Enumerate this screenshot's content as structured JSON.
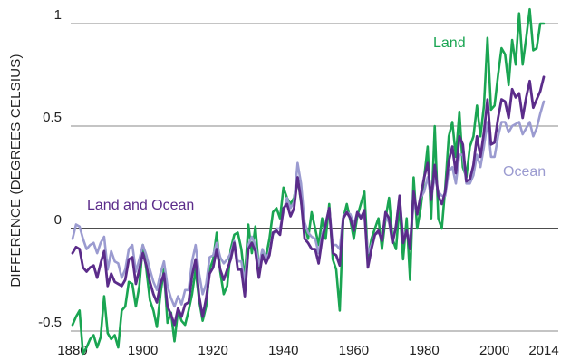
{
  "chart_data": {
    "type": "line",
    "title": "",
    "xlabel": "",
    "ylabel": "DIFFERENCE (DEGREES CELSIUS)",
    "xlim": [
      1880,
      2014
    ],
    "ylim": [
      -0.55,
      1.1
    ],
    "x_ticks": [
      1880,
      1900,
      1920,
      1940,
      1960,
      1980,
      2000,
      2014
    ],
    "x_tick_labels": [
      "1880",
      "1900",
      "1920",
      "1940",
      "1960",
      "1980",
      "2000",
      "2014"
    ],
    "y_ticks": [
      -0.5,
      0,
      0.5,
      1
    ],
    "y_tick_labels": [
      "-0.5",
      "0",
      "0.5",
      "1"
    ],
    "grid": "horizontal",
    "x": [
      1880,
      1881,
      1882,
      1883,
      1884,
      1885,
      1886,
      1887,
      1888,
      1889,
      1890,
      1891,
      1892,
      1893,
      1894,
      1895,
      1896,
      1897,
      1898,
      1899,
      1900,
      1901,
      1902,
      1903,
      1904,
      1905,
      1906,
      1907,
      1908,
      1909,
      1910,
      1911,
      1912,
      1913,
      1914,
      1915,
      1916,
      1917,
      1918,
      1919,
      1920,
      1921,
      1922,
      1923,
      1924,
      1925,
      1926,
      1927,
      1928,
      1929,
      1930,
      1931,
      1932,
      1933,
      1934,
      1935,
      1936,
      1937,
      1938,
      1939,
      1940,
      1941,
      1942,
      1943,
      1944,
      1945,
      1946,
      1947,
      1948,
      1949,
      1950,
      1951,
      1952,
      1953,
      1954,
      1955,
      1956,
      1957,
      1958,
      1959,
      1960,
      1961,
      1962,
      1963,
      1964,
      1965,
      1966,
      1967,
      1968,
      1969,
      1970,
      1971,
      1972,
      1973,
      1974,
      1975,
      1976,
      1977,
      1978,
      1979,
      1980,
      1981,
      1982,
      1983,
      1984,
      1985,
      1986,
      1987,
      1988,
      1989,
      1990,
      1991,
      1992,
      1993,
      1994,
      1995,
      1996,
      1997,
      1998,
      1999,
      2000,
      2001,
      2002,
      2003,
      2004,
      2005,
      2006,
      2007,
      2008,
      2009,
      2010,
      2011,
      2012,
      2013,
      2014
    ],
    "series": [
      {
        "name": "Land",
        "color": "#1aa552",
        "values": [
          -0.47,
          -0.43,
          -0.4,
          -0.61,
          -0.58,
          -0.54,
          -0.52,
          -0.58,
          -0.53,
          -0.33,
          -0.51,
          -0.54,
          -0.52,
          -0.58,
          -0.4,
          -0.38,
          -0.26,
          -0.27,
          -0.38,
          -0.28,
          -0.08,
          -0.2,
          -0.35,
          -0.4,
          -0.48,
          -0.32,
          -0.2,
          -0.46,
          -0.41,
          -0.55,
          -0.4,
          -0.45,
          -0.47,
          -0.4,
          -0.32,
          -0.2,
          -0.35,
          -0.45,
          -0.38,
          -0.2,
          -0.15,
          -0.02,
          -0.21,
          -0.32,
          -0.28,
          -0.1,
          -0.03,
          -0.02,
          -0.1,
          -0.25,
          0.02,
          -0.12,
          0.01,
          -0.2,
          -0.12,
          -0.14,
          -0.05,
          0.08,
          0.1,
          0.05,
          0.2,
          0.15,
          0.12,
          0.15,
          0.25,
          0.13,
          0.02,
          -0.05,
          0.08,
          0.0,
          -0.08,
          0.05,
          -0.05,
          0.12,
          -0.15,
          -0.2,
          -0.4,
          0.05,
          0.12,
          0.04,
          -0.05,
          0.06,
          0.12,
          0.18,
          -0.15,
          -0.05,
          0.0,
          0.05,
          -0.1,
          0.05,
          0.15,
          -0.05,
          -0.1,
          0.12,
          -0.15,
          0.05,
          -0.25,
          0.25,
          0.0,
          0.1,
          0.25,
          0.4,
          0.05,
          0.5,
          0.05,
          0.0,
          0.2,
          0.45,
          0.52,
          0.35,
          0.57,
          0.3,
          0.25,
          0.4,
          0.45,
          0.6,
          0.45,
          0.6,
          0.93,
          0.58,
          0.6,
          0.75,
          0.88,
          0.85,
          0.7,
          0.92,
          0.8,
          1.05,
          0.8,
          0.93,
          1.07,
          0.87,
          0.88,
          1.0,
          1.0
        ]
      },
      {
        "name": "Land and Ocean",
        "color": "#5b2c8a",
        "values": [
          -0.12,
          -0.09,
          -0.1,
          -0.19,
          -0.21,
          -0.19,
          -0.18,
          -0.24,
          -0.17,
          -0.11,
          -0.28,
          -0.22,
          -0.26,
          -0.27,
          -0.28,
          -0.25,
          -0.15,
          -0.14,
          -0.27,
          -0.2,
          -0.12,
          -0.18,
          -0.26,
          -0.32,
          -0.36,
          -0.27,
          -0.22,
          -0.38,
          -0.42,
          -0.47,
          -0.39,
          -0.43,
          -0.37,
          -0.36,
          -0.23,
          -0.15,
          -0.33,
          -0.43,
          -0.34,
          -0.22,
          -0.19,
          -0.1,
          -0.2,
          -0.25,
          -0.2,
          -0.15,
          -0.07,
          -0.2,
          -0.2,
          -0.33,
          -0.1,
          -0.07,
          -0.11,
          -0.24,
          -0.13,
          -0.17,
          -0.13,
          -0.02,
          -0.01,
          -0.03,
          0.1,
          0.12,
          0.06,
          0.1,
          0.25,
          0.14,
          -0.05,
          -0.07,
          -0.1,
          -0.1,
          -0.17,
          -0.05,
          0.02,
          0.1,
          -0.12,
          -0.13,
          -0.18,
          0.05,
          0.08,
          0.05,
          -0.01,
          0.08,
          0.05,
          0.09,
          -0.19,
          -0.1,
          -0.03,
          -0.01,
          -0.06,
          0.08,
          0.05,
          -0.07,
          0.01,
          0.16,
          -0.07,
          -0.01,
          -0.1,
          0.18,
          0.07,
          0.16,
          0.25,
          0.32,
          0.14,
          0.31,
          0.16,
          0.12,
          0.18,
          0.33,
          0.4,
          0.27,
          0.45,
          0.41,
          0.23,
          0.24,
          0.31,
          0.45,
          0.35,
          0.47,
          0.63,
          0.41,
          0.42,
          0.54,
          0.63,
          0.62,
          0.54,
          0.68,
          0.64,
          0.66,
          0.54,
          0.64,
          0.72,
          0.59,
          0.63,
          0.67,
          0.74
        ]
      },
      {
        "name": "Ocean",
        "color": "#9b9bd0",
        "values": [
          -0.05,
          0.02,
          0.01,
          -0.05,
          -0.1,
          -0.08,
          -0.07,
          -0.12,
          -0.07,
          -0.04,
          -0.2,
          -0.11,
          -0.16,
          -0.17,
          -0.24,
          -0.2,
          -0.1,
          -0.08,
          -0.21,
          -0.15,
          -0.08,
          -0.13,
          -0.2,
          -0.26,
          -0.3,
          -0.22,
          -0.16,
          -0.28,
          -0.34,
          -0.38,
          -0.33,
          -0.37,
          -0.3,
          -0.3,
          -0.16,
          -0.08,
          -0.22,
          -0.32,
          -0.27,
          -0.14,
          -0.13,
          -0.07,
          -0.14,
          -0.17,
          -0.15,
          -0.12,
          -0.06,
          -0.16,
          -0.16,
          -0.26,
          -0.08,
          -0.04,
          -0.08,
          -0.18,
          -0.1,
          -0.14,
          -0.12,
          -0.03,
          0.0,
          0.0,
          0.08,
          0.15,
          0.1,
          0.13,
          0.32,
          0.22,
          0.03,
          -0.02,
          -0.04,
          -0.05,
          -0.12,
          -0.03,
          0.03,
          0.1,
          -0.08,
          -0.08,
          -0.1,
          0.06,
          0.08,
          0.07,
          0.02,
          0.08,
          0.06,
          0.06,
          -0.12,
          -0.08,
          -0.03,
          -0.02,
          -0.04,
          0.06,
          0.03,
          -0.07,
          0.02,
          0.15,
          -0.04,
          -0.01,
          -0.06,
          0.12,
          0.08,
          0.15,
          0.18,
          0.25,
          0.15,
          0.25,
          0.18,
          0.16,
          0.16,
          0.28,
          0.3,
          0.22,
          0.36,
          0.36,
          0.22,
          0.22,
          0.26,
          0.36,
          0.3,
          0.4,
          0.52,
          0.35,
          0.35,
          0.45,
          0.52,
          0.52,
          0.47,
          0.5,
          0.51,
          0.52,
          0.46,
          0.49,
          0.52,
          0.45,
          0.49,
          0.56,
          0.62
        ]
      }
    ],
    "series_labels": [
      {
        "text": "Land"
      },
      {
        "text": "Ocean"
      },
      {
        "text": "Land and Ocean"
      }
    ]
  }
}
